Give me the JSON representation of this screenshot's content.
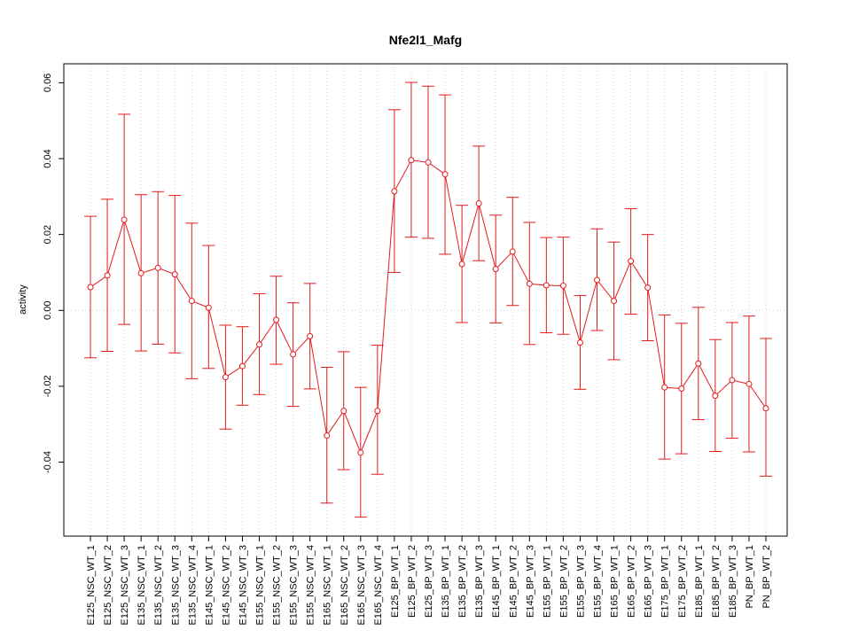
{
  "chart_data": {
    "type": "line",
    "title": "Nfe2l1_Mafg",
    "xlabel": "",
    "ylabel": "activity",
    "ylim": [
      -0.0595,
      0.065
    ],
    "yticks": [
      -0.04,
      -0.02,
      0.0,
      0.02,
      0.04,
      0.06
    ],
    "ytick_labels": [
      "-0.04",
      "-0.02",
      "0.00",
      "0.02",
      "0.04",
      "0.06"
    ],
    "grid": true,
    "reference_line": 0,
    "color": "#e41a1c",
    "categories": [
      "E125_NSC_WT_1",
      "E125_NSC_WT_2",
      "E125_NSC_WT_3",
      "E135_NSC_WT_1",
      "E135_NSC_WT_2",
      "E135_NSC_WT_3",
      "E135_NSC_WT_4",
      "E145_NSC_WT_1",
      "E145_NSC_WT_2",
      "E145_NSC_WT_3",
      "E155_NSC_WT_1",
      "E155_NSC_WT_2",
      "E155_NSC_WT_3",
      "E155_NSC_WT_4",
      "E165_NSC_WT_1",
      "E165_NSC_WT_2",
      "E165_NSC_WT_3",
      "E165_NSC_WT_4",
      "E125_BP_WT_1",
      "E125_BP_WT_2",
      "E125_BP_WT_3",
      "E135_BP_WT_1",
      "E135_BP_WT_2",
      "E135_BP_WT_3",
      "E145_BP_WT_1",
      "E145_BP_WT_2",
      "E145_BP_WT_3",
      "E155_BP_WT_1",
      "E155_BP_WT_2",
      "E155_BP_WT_3",
      "E155_BP_WT_4",
      "E165_BP_WT_1",
      "E165_BP_WT_2",
      "E165_BP_WT_3",
      "E175_BP_WT_1",
      "E175_BP_WT_2",
      "E185_BP_WT_1",
      "E185_BP_WT_2",
      "E185_BP_WT_3",
      "PN_BP_WT_1",
      "PN_BP_WT_2"
    ],
    "values": [
      0.0061,
      0.0092,
      0.0239,
      0.0098,
      0.0112,
      0.0095,
      0.0025,
      0.0007,
      -0.0176,
      -0.0147,
      -0.009,
      -0.0025,
      -0.0116,
      -0.0068,
      -0.033,
      -0.0265,
      -0.0375,
      -0.0265,
      0.0314,
      0.0396,
      0.039,
      0.0359,
      0.0122,
      0.0282,
      0.0109,
      0.0155,
      0.007,
      0.0066,
      0.0065,
      -0.0085,
      0.008,
      0.0025,
      0.013,
      0.006,
      -0.0203,
      -0.0206,
      -0.014,
      -0.0225,
      -0.0184,
      -0.0194,
      -0.0258
    ],
    "upper": [
      0.0248,
      0.0293,
      0.0517,
      0.0305,
      0.0313,
      0.0303,
      0.023,
      0.0171,
      -0.0039,
      -0.0043,
      0.0044,
      0.009,
      0.002,
      0.0071,
      -0.015,
      -0.0109,
      -0.0203,
      -0.0092,
      0.0529,
      0.0601,
      0.0591,
      0.0568,
      0.0277,
      0.0433,
      0.0251,
      0.0298,
      0.0232,
      0.0192,
      0.0193,
      0.0039,
      0.0215,
      0.018,
      0.0268,
      0.02,
      -0.0012,
      -0.0034,
      0.0008,
      -0.0077,
      -0.0032,
      -0.0015,
      -0.0074
    ],
    "lower": [
      -0.0125,
      -0.0108,
      -0.0037,
      -0.0107,
      -0.0089,
      -0.0112,
      -0.018,
      -0.0153,
      -0.0313,
      -0.025,
      -0.0222,
      -0.0142,
      -0.0253,
      -0.0207,
      -0.0508,
      -0.042,
      -0.0545,
      -0.0432,
      0.01,
      0.0193,
      0.019,
      0.0148,
      -0.0032,
      0.0131,
      -0.0033,
      0.0013,
      -0.009,
      -0.0059,
      -0.0063,
      -0.0208,
      -0.0053,
      -0.013,
      -0.001,
      -0.008,
      -0.0392,
      -0.0378,
      -0.0288,
      -0.0372,
      -0.0337,
      -0.0373,
      -0.0437
    ]
  }
}
